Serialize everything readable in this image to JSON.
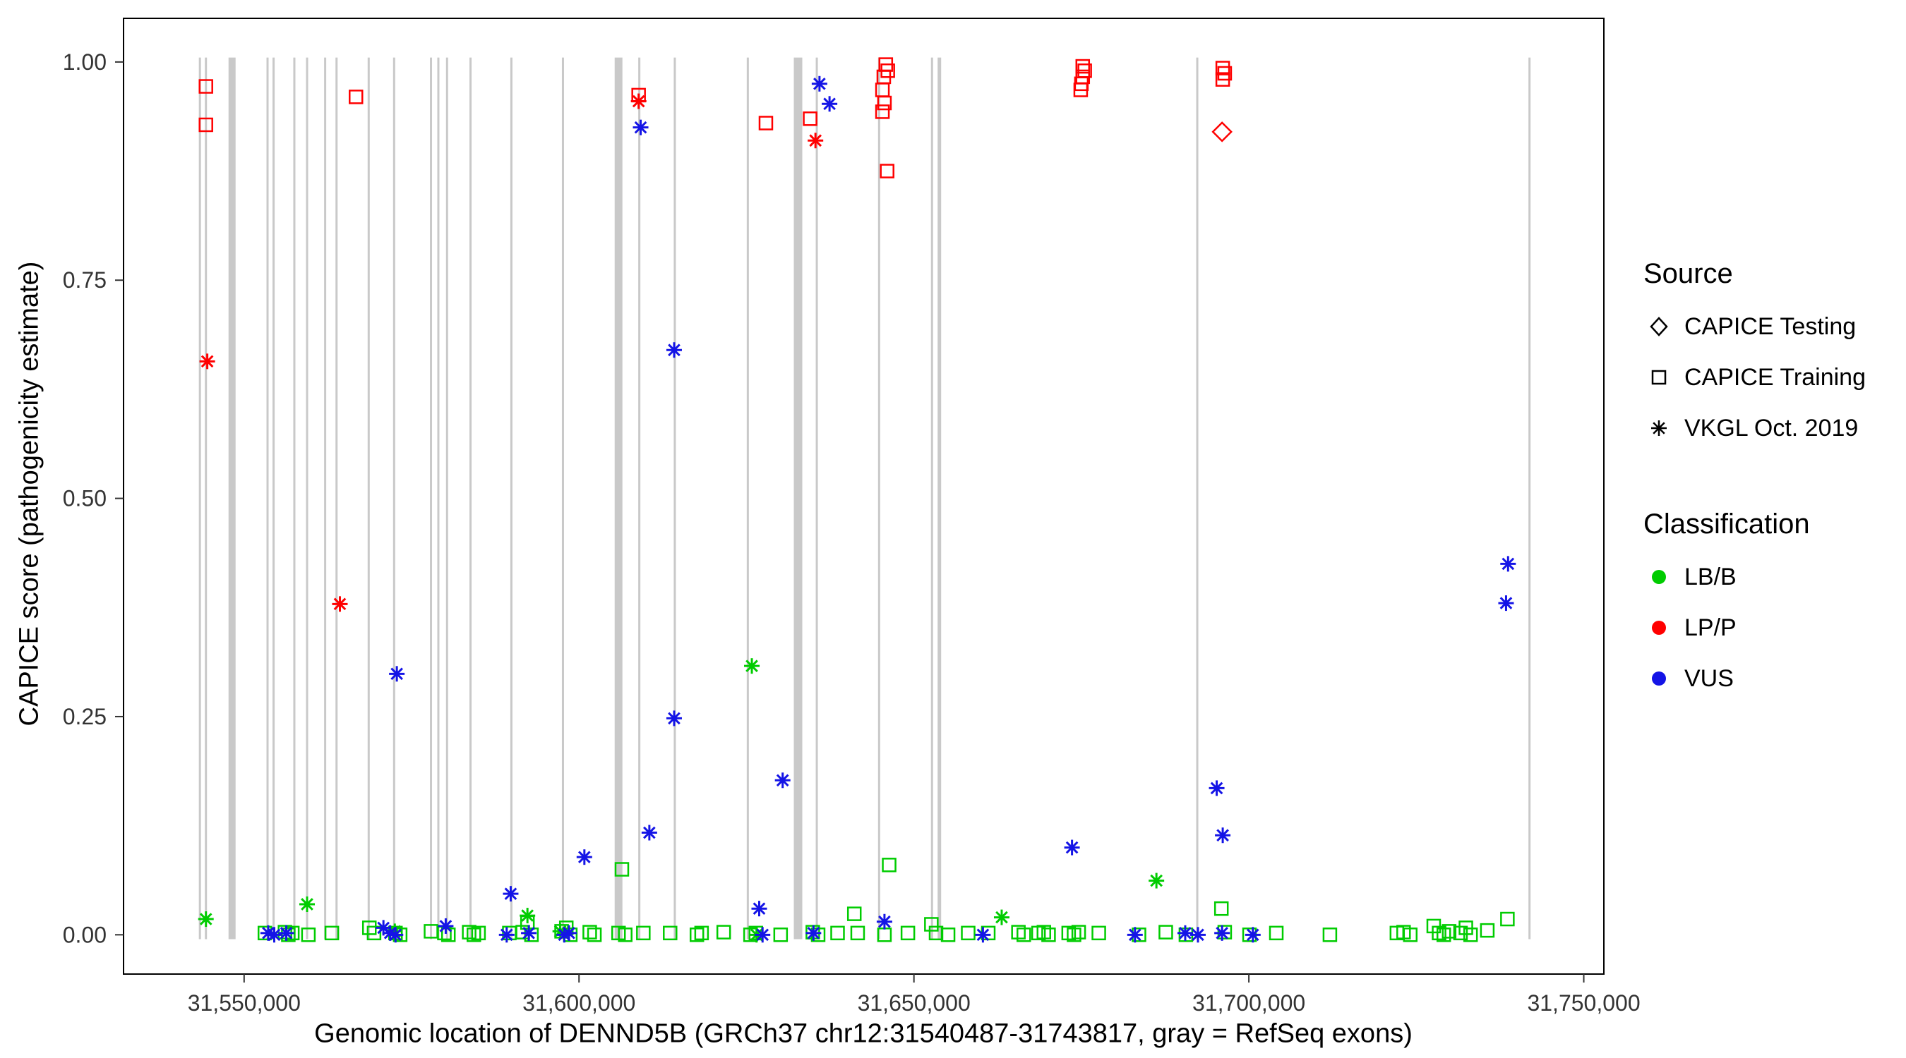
{
  "legend": {
    "source": {
      "title": "Source",
      "items": [
        {
          "label": "CAPICE Testing",
          "shape": "diamond"
        },
        {
          "label": "CAPICE Training",
          "shape": "square"
        },
        {
          "label": "VKGL Oct. 2019",
          "shape": "asterisk"
        }
      ]
    },
    "classification": {
      "title": "Classification",
      "items": [
        {
          "label": "LB/B",
          "color": "#00CC00"
        },
        {
          "label": "LP/P",
          "color": "#FF0000"
        },
        {
          "label": "VUS",
          "color": "#1414E6"
        }
      ]
    }
  },
  "chart_data": {
    "type": "scatter",
    "title": "",
    "xlabel": "Genomic location of DENND5B (GRCh37 chr12:31540487-31743817, gray = RefSeq exons)",
    "ylabel": "CAPICE score (pathogenicity estimate)",
    "xlim": [
      31532000,
      31753000
    ],
    "ylim": [
      -0.045,
      1.05
    ],
    "grid": false,
    "legend_position": "right",
    "x_ticks": [
      {
        "value": 31550000,
        "label": "31,550,000"
      },
      {
        "value": 31600000,
        "label": "31,600,000"
      },
      {
        "value": 31650000,
        "label": "31,650,000"
      },
      {
        "value": 31700000,
        "label": "31,700,000"
      },
      {
        "value": 31750000,
        "label": "31,750,000"
      }
    ],
    "y_ticks": [
      {
        "value": 0.0,
        "label": "0.00"
      },
      {
        "value": 0.25,
        "label": "0.25"
      },
      {
        "value": 0.5,
        "label": "0.50"
      },
      {
        "value": 0.75,
        "label": "0.75"
      },
      {
        "value": 1.0,
        "label": "1.00"
      }
    ],
    "exon_color": "#C9C9C9",
    "exons": [
      {
        "pos": 31543400,
        "w": 3
      },
      {
        "pos": 31544300,
        "w": 3
      },
      {
        "pos": 31548200,
        "w": 10
      },
      {
        "pos": 31553500,
        "w": 3
      },
      {
        "pos": 31554400,
        "w": 3
      },
      {
        "pos": 31557500,
        "w": 3
      },
      {
        "pos": 31559400,
        "w": 3
      },
      {
        "pos": 31562100,
        "w": 3
      },
      {
        "pos": 31563800,
        "w": 3
      },
      {
        "pos": 31568600,
        "w": 3
      },
      {
        "pos": 31572400,
        "w": 3
      },
      {
        "pos": 31577900,
        "w": 3
      },
      {
        "pos": 31579000,
        "w": 3
      },
      {
        "pos": 31580300,
        "w": 3
      },
      {
        "pos": 31583800,
        "w": 3
      },
      {
        "pos": 31589900,
        "w": 3
      },
      {
        "pos": 31597600,
        "w": 3
      },
      {
        "pos": 31605900,
        "w": 11
      },
      {
        "pos": 31609000,
        "w": 3
      },
      {
        "pos": 31614300,
        "w": 3
      },
      {
        "pos": 31625200,
        "w": 3
      },
      {
        "pos": 31632700,
        "w": 12
      },
      {
        "pos": 31635500,
        "w": 3
      },
      {
        "pos": 31644800,
        "w": 3
      },
      {
        "pos": 31652700,
        "w": 3
      },
      {
        "pos": 31653800,
        "w": 5
      },
      {
        "pos": 31692300,
        "w": 3
      },
      {
        "pos": 31741900,
        "w": 3
      }
    ],
    "series": [
      {
        "name": "LB/B CAPICE Training",
        "classification": "LB/B",
        "source": "CAPICE Training",
        "shape": "square",
        "color": "#00CC00",
        "points": [
          [
            31553100,
            0.002
          ],
          [
            31556100,
            0.003
          ],
          [
            31556600,
            0.0
          ],
          [
            31557200,
            0.002
          ],
          [
            31559600,
            0.0
          ],
          [
            31563100,
            0.002
          ],
          [
            31568700,
            0.008
          ],
          [
            31569400,
            0.002
          ],
          [
            31572600,
            0.002
          ],
          [
            31573300,
            0.0
          ],
          [
            31577900,
            0.004
          ],
          [
            31579900,
            0.002
          ],
          [
            31580500,
            0.0
          ],
          [
            31583600,
            0.003
          ],
          [
            31584300,
            0.0
          ],
          [
            31585000,
            0.002
          ],
          [
            31589600,
            0.002
          ],
          [
            31591600,
            0.003
          ],
          [
            31592300,
            0.014
          ],
          [
            31592900,
            0.0
          ],
          [
            31597400,
            0.004
          ],
          [
            31598100,
            0.008
          ],
          [
            31598700,
            0.0
          ],
          [
            31601600,
            0.003
          ],
          [
            31602300,
            0.0
          ],
          [
            31605900,
            0.002
          ],
          [
            31606400,
            0.075
          ],
          [
            31606900,
            0.0
          ],
          [
            31609600,
            0.002
          ],
          [
            31613600,
            0.002
          ],
          [
            31617600,
            0.0
          ],
          [
            31618300,
            0.002
          ],
          [
            31621600,
            0.003
          ],
          [
            31625600,
            0.0
          ],
          [
            31626400,
            0.002
          ],
          [
            31630100,
            0.0
          ],
          [
            31634900,
            0.003
          ],
          [
            31635700,
            0.0
          ],
          [
            31638600,
            0.002
          ],
          [
            31641100,
            0.024
          ],
          [
            31641600,
            0.002
          ],
          [
            31645600,
            0.0
          ],
          [
            31646300,
            0.08
          ],
          [
            31649100,
            0.002
          ],
          [
            31652600,
            0.012
          ],
          [
            31653300,
            0.002
          ],
          [
            31655100,
            0.0
          ],
          [
            31658100,
            0.002
          ],
          [
            31661100,
            0.002
          ],
          [
            31665600,
            0.003
          ],
          [
            31666400,
            0.0
          ],
          [
            31668600,
            0.002
          ],
          [
            31669400,
            0.003
          ],
          [
            31670100,
            0.0
          ],
          [
            31673100,
            0.002
          ],
          [
            31673900,
            0.0
          ],
          [
            31674600,
            0.003
          ],
          [
            31677600,
            0.002
          ],
          [
            31683600,
            0.0
          ],
          [
            31687600,
            0.003
          ],
          [
            31690600,
            0.0
          ],
          [
            31695900,
            0.03
          ],
          [
            31696400,
            0.003
          ],
          [
            31700100,
            0.0
          ],
          [
            31704100,
            0.002
          ],
          [
            31712100,
            0.0
          ],
          [
            31722100,
            0.002
          ],
          [
            31723100,
            0.003
          ],
          [
            31724100,
            0.0
          ],
          [
            31727600,
            0.01
          ],
          [
            31728400,
            0.002
          ],
          [
            31729100,
            0.0
          ],
          [
            31729900,
            0.004
          ],
          [
            31731600,
            0.002
          ],
          [
            31732400,
            0.008
          ],
          [
            31733100,
            0.0
          ],
          [
            31735600,
            0.005
          ],
          [
            31738600,
            0.018
          ]
        ]
      },
      {
        "name": "LB/B VKGL Oct. 2019",
        "classification": "LB/B",
        "source": "VKGL Oct. 2019",
        "shape": "asterisk",
        "color": "#00CC00",
        "points": [
          [
            31544300,
            0.018
          ],
          [
            31559400,
            0.035
          ],
          [
            31572500,
            0.004
          ],
          [
            31592300,
            0.022
          ],
          [
            31597200,
            0.004
          ],
          [
            31625800,
            0.308
          ],
          [
            31626500,
            0.0
          ],
          [
            31663100,
            0.02
          ],
          [
            31686200,
            0.062
          ]
        ]
      },
      {
        "name": "VUS VKGL Oct. 2019",
        "classification": "VUS",
        "source": "VKGL Oct. 2019",
        "shape": "asterisk",
        "color": "#1414E6",
        "points": [
          [
            31609200,
            0.925
          ],
          [
            31635900,
            0.975
          ],
          [
            31637400,
            0.952
          ],
          [
            31614200,
            0.67
          ],
          [
            31572800,
            0.299
          ],
          [
            31614200,
            0.248
          ],
          [
            31630400,
            0.177
          ],
          [
            31610500,
            0.117
          ],
          [
            31600800,
            0.089
          ],
          [
            31589800,
            0.047
          ],
          [
            31673600,
            0.1
          ],
          [
            31695200,
            0.168
          ],
          [
            31696100,
            0.114
          ],
          [
            31738700,
            0.425
          ],
          [
            31738400,
            0.38
          ],
          [
            31553600,
            0.002
          ],
          [
            31554500,
            0.0
          ],
          [
            31556300,
            0.002
          ],
          [
            31570800,
            0.008
          ],
          [
            31571800,
            0.002
          ],
          [
            31572600,
            0.0
          ],
          [
            31580100,
            0.01
          ],
          [
            31589200,
            0.0
          ],
          [
            31592500,
            0.002
          ],
          [
            31597800,
            0.0
          ],
          [
            31598500,
            0.002
          ],
          [
            31626900,
            0.03
          ],
          [
            31627400,
            0.0
          ],
          [
            31635000,
            0.002
          ],
          [
            31645600,
            0.015
          ],
          [
            31660300,
            0.0
          ],
          [
            31683000,
            0.0
          ],
          [
            31690500,
            0.002
          ],
          [
            31692400,
            0.0
          ],
          [
            31696000,
            0.002
          ],
          [
            31700600,
            0.0
          ]
        ]
      },
      {
        "name": "LP/P CAPICE Training",
        "classification": "LP/P",
        "source": "CAPICE Training",
        "shape": "square",
        "color": "#FF0000",
        "points": [
          [
            31544300,
            0.972
          ],
          [
            31544300,
            0.928
          ],
          [
            31566700,
            0.96
          ],
          [
            31608900,
            0.962
          ],
          [
            31627900,
            0.93
          ],
          [
            31634500,
            0.935
          ],
          [
            31645800,
            0.997
          ],
          [
            31646100,
            0.99
          ],
          [
            31645500,
            0.983
          ],
          [
            31645300,
            0.968
          ],
          [
            31645600,
            0.953
          ],
          [
            31645300,
            0.943
          ],
          [
            31646000,
            0.875
          ],
          [
            31675200,
            0.995
          ],
          [
            31675500,
            0.99
          ],
          [
            31675200,
            0.983
          ],
          [
            31675000,
            0.975
          ],
          [
            31674900,
            0.968
          ],
          [
            31696100,
            0.993
          ],
          [
            31696400,
            0.987
          ],
          [
            31696100,
            0.98
          ]
        ]
      },
      {
        "name": "LP/P CAPICE Testing",
        "classification": "LP/P",
        "source": "CAPICE Testing",
        "shape": "diamond",
        "color": "#FF0000",
        "points": [
          [
            31696000,
            0.92
          ]
        ]
      },
      {
        "name": "LP/P VKGL Oct. 2019",
        "classification": "LP/P",
        "source": "VKGL Oct. 2019",
        "shape": "asterisk",
        "color": "#FF0000",
        "points": [
          [
            31544500,
            0.657
          ],
          [
            31564300,
            0.379
          ],
          [
            31608900,
            0.955
          ],
          [
            31635300,
            0.91
          ]
        ]
      }
    ]
  }
}
